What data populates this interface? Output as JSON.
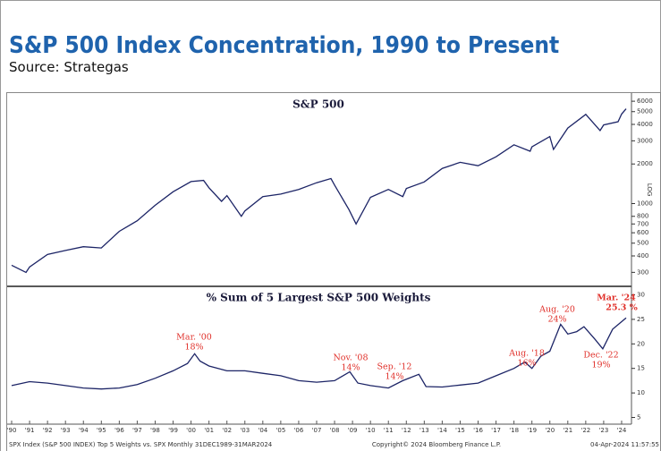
{
  "header": {
    "title": "S&P 500 Index Concentration, 1990 to Present",
    "subtitle": "Source: Strategas"
  },
  "chart_data": [
    {
      "type": "line",
      "title": "S&P 500",
      "log_scale": true,
      "scale_label": "LOG",
      "series": [
        {
          "name": "S&P 500",
          "color": "#1c2466",
          "x": [
            1990.0,
            1990.8,
            1991.0,
            1992.0,
            1993.0,
            1994.0,
            1995.0,
            1996.0,
            1997.0,
            1998.0,
            1999.0,
            2000.0,
            2000.7,
            2001.0,
            2001.7,
            2002.0,
            2002.8,
            2003.0,
            2004.0,
            2005.0,
            2006.0,
            2007.0,
            2007.8,
            2008.0,
            2008.8,
            2009.2,
            2010.0,
            2011.0,
            2011.8,
            2012.0,
            2013.0,
            2014.0,
            2015.0,
            2016.0,
            2017.0,
            2018.0,
            2018.9,
            2019.0,
            2020.0,
            2020.2,
            2021.0,
            2022.0,
            2022.8,
            2023.0,
            2023.8,
            2024.0,
            2024.25
          ],
          "values": [
            340,
            300,
            330,
            410,
            440,
            470,
            460,
            615,
            740,
            970,
            1230,
            1470,
            1500,
            1320,
            1040,
            1150,
            800,
            880,
            1130,
            1180,
            1280,
            1440,
            1550,
            1380,
            900,
            700,
            1115,
            1280,
            1130,
            1300,
            1460,
            1850,
            2060,
            1940,
            2270,
            2800,
            2500,
            2700,
            3230,
            2580,
            3750,
            4770,
            3590,
            3960,
            4190,
            4800,
            5250
          ]
        }
      ],
      "xlim": [
        1989.75,
        2024.5
      ],
      "ylim": [
        250,
        6500
      ],
      "yticks": [
        300,
        400,
        500,
        600,
        700,
        800,
        1000,
        2000,
        3000,
        4000,
        5000,
        6000
      ]
    },
    {
      "type": "line",
      "title": "% Sum of 5 Largest S&P 500 Weights",
      "series": [
        {
          "name": "% Sum of 5 Largest S&P 500 Weights",
          "color": "#1c2466",
          "x": [
            1990.0,
            1991.0,
            1992.0,
            1993.0,
            1994.0,
            1995.0,
            1996.0,
            1997.0,
            1998.0,
            1999.0,
            1999.8,
            2000.2,
            2000.5,
            2001.0,
            2002.0,
            2003.0,
            2004.0,
            2005.0,
            2006.0,
            2007.0,
            2008.0,
            2008.85,
            2009.3,
            2010.0,
            2011.0,
            2011.8,
            2012.7,
            2013.1,
            2014.0,
            2015.0,
            2016.0,
            2017.0,
            2018.0,
            2018.6,
            2019.0,
            2019.5,
            2020.0,
            2020.6,
            2021.0,
            2021.5,
            2021.9,
            2022.5,
            2022.95,
            2023.5,
            2024.25
          ],
          "values": [
            11.5,
            12.3,
            12,
            11.5,
            11,
            10.8,
            11,
            11.7,
            13,
            14.5,
            16,
            18,
            16.5,
            15.5,
            14.5,
            14.5,
            14,
            13.5,
            12.5,
            12.2,
            12.5,
            14.3,
            12,
            11.5,
            11,
            12.5,
            13.8,
            11.3,
            11.2,
            11.6,
            12,
            13.5,
            15,
            16.3,
            15,
            17.5,
            18.5,
            24,
            22,
            22.5,
            23.5,
            21,
            19,
            23,
            25.3
          ]
        }
      ],
      "annotations": [
        {
          "label": "Mar. '00",
          "text": "18%"
        },
        {
          "label": "Nov. '08",
          "text": "14%"
        },
        {
          "label": "Sep. '12",
          "text": "14%"
        },
        {
          "label": "Aug. '18",
          "text": "16%"
        },
        {
          "label": "Aug. '20",
          "text": "24%"
        },
        {
          "label": "Dec. '22",
          "text": "19%"
        },
        {
          "label": "Mar. '24",
          "text": "25.3 %"
        }
      ],
      "xlim": [
        1989.75,
        2024.5
      ],
      "xticks": [
        {
          "value": 1990,
          "label": "'90"
        },
        {
          "value": 1991,
          "label": "'91"
        },
        {
          "value": 1992,
          "label": "'92"
        },
        {
          "value": 1993,
          "label": "'93"
        },
        {
          "value": 1994,
          "label": "'94"
        },
        {
          "value": 1995,
          "label": "'95"
        },
        {
          "value": 1996,
          "label": "'96"
        },
        {
          "value": 1997,
          "label": "'97"
        },
        {
          "value": 1998,
          "label": "'98"
        },
        {
          "value": 1999,
          "label": "'99"
        },
        {
          "value": 2000,
          "label": "'00"
        },
        {
          "value": 2001,
          "label": "'01"
        },
        {
          "value": 2002,
          "label": "'02"
        },
        {
          "value": 2003,
          "label": "'03"
        },
        {
          "value": 2004,
          "label": "'04"
        },
        {
          "value": 2005,
          "label": "'05"
        },
        {
          "value": 2006,
          "label": "'06"
        },
        {
          "value": 2007,
          "label": "'07"
        },
        {
          "value": 2008,
          "label": "'08"
        },
        {
          "value": 2009,
          "label": "'09"
        },
        {
          "value": 2010,
          "label": "'10"
        },
        {
          "value": 2011,
          "label": "'11"
        },
        {
          "value": 2012,
          "label": "'12"
        },
        {
          "value": 2013,
          "label": "'13"
        },
        {
          "value": 2014,
          "label": "'14"
        },
        {
          "value": 2015,
          "label": "'15"
        },
        {
          "value": 2016,
          "label": "'16"
        },
        {
          "value": 2017,
          "label": "'17"
        },
        {
          "value": 2018,
          "label": "'18"
        },
        {
          "value": 2019,
          "label": "'19"
        },
        {
          "value": 2020,
          "label": "'20"
        },
        {
          "value": 2021,
          "label": "'21"
        },
        {
          "value": 2022,
          "label": "'22"
        },
        {
          "value": 2023,
          "label": "'23"
        },
        {
          "value": 2024,
          "label": "'24"
        }
      ],
      "ylim": [
        4,
        31
      ],
      "yticks": [
        5,
        10,
        15,
        20,
        25,
        30
      ]
    }
  ],
  "footer": [
    "SPX Index (S&P 500 INDEX) Top 5 Weights vs. SPX  Monthly 31DEC1989-31MAR2024",
    "Copyright© 2024 Bloomberg Finance L.P.",
    "04-Apr-2024 11:57:55"
  ]
}
